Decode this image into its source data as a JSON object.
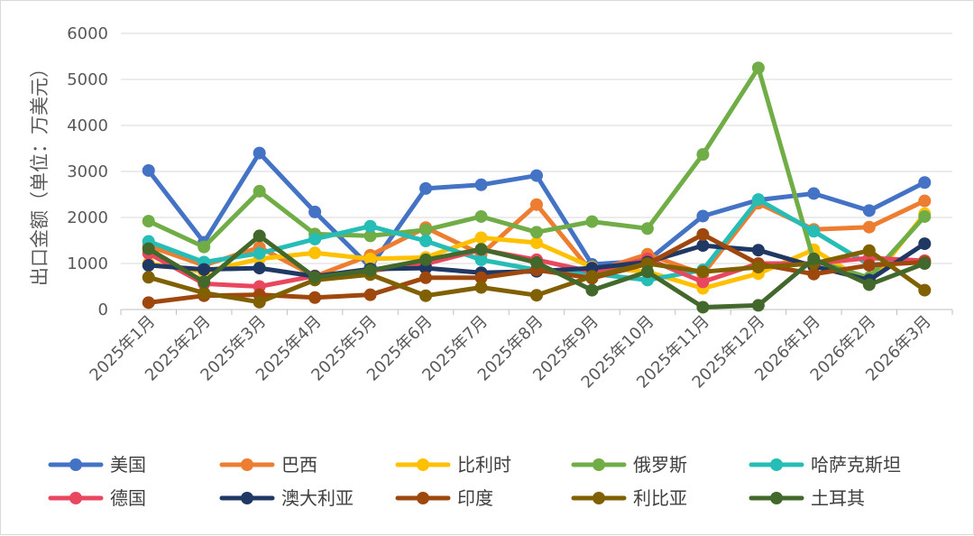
{
  "chart_data": {
    "type": "line",
    "ylabel": "出口金额（单位：万美元）",
    "ylim": [
      0,
      6000
    ],
    "yticks": [
      0,
      1000,
      2000,
      3000,
      4000,
      5000,
      6000
    ],
    "grid": true,
    "legend_position": "bottom",
    "categories": [
      "2025年1月",
      "2025年2月",
      "2025年3月",
      "2025年4月",
      "2025年5月",
      "2025年6月",
      "2025年7月",
      "2025年8月",
      "2025年9月",
      "2025年10月",
      "2025年11月",
      "2025年12月",
      "2026年1月",
      "2026年2月",
      "2026年3月"
    ],
    "series": [
      {
        "name": "美国",
        "color": "#4472C4",
        "values": [
          3020,
          1460,
          3400,
          2120,
          920,
          2630,
          2710,
          2910,
          980,
          1060,
          2030,
          2380,
          2520,
          2150,
          2760
        ]
      },
      {
        "name": "巴西",
        "color": "#ED7D31",
        "values": [
          1380,
          960,
          1350,
          720,
          1180,
          1780,
          1200,
          2280,
          810,
          1200,
          770,
          2310,
          1740,
          1790,
          2360
        ]
      },
      {
        "name": "比利时",
        "color": "#FFC000",
        "values": [
          1000,
          820,
          1100,
          1230,
          1100,
          1130,
          1560,
          1450,
          920,
          820,
          460,
          780,
          1300,
          560,
          2080
        ]
      },
      {
        "name": "俄罗斯",
        "color": "#70AD47",
        "values": [
          1920,
          1360,
          2570,
          1640,
          1600,
          1730,
          2020,
          1680,
          1910,
          1760,
          3370,
          5250,
          1060,
          690,
          2020
        ]
      },
      {
        "name": "哈萨克斯坦",
        "color": "#26BDB6",
        "values": [
          1480,
          1030,
          1220,
          1530,
          1810,
          1490,
          1080,
          860,
          780,
          640,
          860,
          2390,
          1700,
          970,
          1060
        ]
      },
      {
        "name": "德国",
        "color": "#E8475F",
        "values": [
          1220,
          560,
          500,
          730,
          840,
          990,
          1300,
          1080,
          820,
          1100,
          600,
          1000,
          1000,
          1120,
          1060
        ]
      },
      {
        "name": "澳大利亚",
        "color": "#203864",
        "values": [
          960,
          870,
          900,
          720,
          880,
          900,
          800,
          830,
          900,
          1030,
          1390,
          1290,
          940,
          640,
          1430
        ]
      },
      {
        "name": "印度",
        "color": "#9E480E",
        "values": [
          150,
          300,
          320,
          260,
          320,
          690,
          690,
          860,
          680,
          990,
          1630,
          990,
          770,
          960,
          1030
        ]
      },
      {
        "name": "利比亚",
        "color": "#806000",
        "values": [
          700,
          360,
          160,
          640,
          760,
          300,
          480,
          310,
          720,
          1000,
          820,
          920,
          1000,
          1280,
          420
        ]
      },
      {
        "name": "土耳其",
        "color": "#43682B",
        "values": [
          1320,
          600,
          1600,
          700,
          850,
          1080,
          1310,
          1020,
          420,
          820,
          50,
          90,
          1100,
          540,
          1000
        ]
      }
    ]
  }
}
